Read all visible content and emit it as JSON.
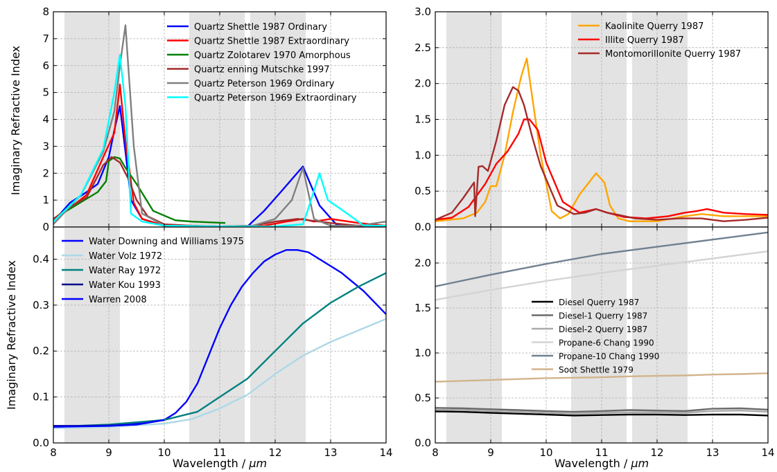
{
  "figure": {
    "ylabel_left": "Imaginary Refractive Index",
    "xlabel": "Wavelength / μm",
    "xlabel_text": "Wavelength / ",
    "xlabel_unit": "μm",
    "shaded_bands_um": [
      [
        8.2,
        9.2
      ],
      [
        10.45,
        11.45
      ],
      [
        11.55,
        12.55
      ]
    ]
  },
  "chart_data": [
    {
      "id": "tl",
      "type": "line",
      "xlim": [
        8,
        14
      ],
      "ylim": [
        0,
        8
      ],
      "xticks": [
        8,
        9,
        10,
        11,
        12,
        13,
        14
      ],
      "yticks": [
        0,
        1,
        2,
        3,
        4,
        5,
        6,
        7,
        8
      ],
      "ytick_labels": [
        "0",
        "1",
        "2",
        "3",
        "4",
        "5",
        "6",
        "7",
        "8"
      ],
      "show_xtick_labels": false,
      "grid": true,
      "legend": "top-right",
      "series": [
        {
          "name": "Quartz Shettle 1987 Ordinary",
          "color": "#0000ff",
          "x": [
            8,
            8.3,
            8.6,
            8.8,
            9.0,
            9.1,
            9.2,
            9.3,
            9.4,
            9.6,
            10,
            11,
            11.5,
            11.8,
            12.1,
            12.5,
            12.8,
            13.1,
            13.5,
            14
          ],
          "y": [
            0.2,
            0.9,
            1.3,
            1.6,
            2.6,
            3.6,
            4.5,
            2.8,
            1.0,
            0.3,
            0.05,
            0.02,
            0.02,
            0.6,
            1.3,
            2.25,
            0.8,
            0.1,
            0.05,
            0.05
          ]
        },
        {
          "name": "Quartz Shettle 1987 Extraordinary",
          "color": "#ff0000",
          "x": [
            8,
            8.3,
            8.6,
            8.9,
            9.1,
            9.2,
            9.3,
            9.45,
            9.6,
            10,
            11,
            11.5,
            11.8,
            12.2,
            12.5,
            12.7,
            13,
            13.5,
            14
          ],
          "y": [
            0.3,
            0.7,
            1.2,
            2.6,
            3.5,
            5.3,
            3.2,
            0.9,
            0.3,
            0.05,
            0.02,
            0.02,
            0.05,
            0.2,
            0.3,
            0.2,
            0.3,
            0.15,
            0.05
          ]
        },
        {
          "name": "Quartz Zolotarev 1970 Amorphous",
          "color": "#008000",
          "x": [
            8,
            8.4,
            8.8,
            8.95,
            9.0,
            9.1,
            9.2,
            9.3,
            9.5,
            9.8,
            10.2,
            10.5,
            11.1
          ],
          "y": [
            0.3,
            0.8,
            1.3,
            1.7,
            2.45,
            2.6,
            2.55,
            2.2,
            1.6,
            0.6,
            0.25,
            0.2,
            0.15
          ]
        },
        {
          "name": "Quartz enning Mutschke 1997",
          "color": "#a52a2a",
          "x": [
            8,
            8.3,
            8.6,
            8.9,
            9.05,
            9.2,
            9.35,
            9.5,
            9.7,
            10,
            10.5,
            11,
            11.6,
            12.0,
            12.4,
            12.8,
            13.0,
            13.5,
            14
          ],
          "y": [
            0.3,
            0.75,
            1.1,
            2.3,
            2.6,
            2.4,
            1.8,
            1.0,
            0.4,
            0.1,
            0.05,
            0.02,
            0.05,
            0.2,
            0.3,
            0.2,
            0.15,
            0.05,
            0.05
          ]
        },
        {
          "name": "Quartz Peterson 1969 Ordinary",
          "color": "#808080",
          "x": [
            8,
            8.5,
            8.9,
            9.1,
            9.2,
            9.3,
            9.45,
            9.6,
            10,
            11,
            11.6,
            12.0,
            12.3,
            12.5,
            12.7,
            13.0,
            13.5,
            14
          ],
          "y": [
            0.1,
            1.2,
            2.8,
            4.3,
            6.0,
            7.5,
            3.0,
            0.5,
            0.05,
            0.02,
            0.05,
            0.3,
            1.0,
            2.2,
            0.3,
            0.05,
            0.05,
            0.2
          ]
        },
        {
          "name": "Quartz Peterson 1969 Extraordinary",
          "color": "#00ffff",
          "x": [
            8,
            8.5,
            8.9,
            9.1,
            9.2,
            9.3,
            9.4,
            9.6,
            10,
            11,
            12,
            12.5,
            12.6,
            12.8,
            12.95,
            13.3,
            13.6,
            14
          ],
          "y": [
            0.2,
            1.2,
            2.9,
            5.0,
            6.4,
            4.5,
            0.5,
            0.2,
            0.05,
            0.02,
            0.02,
            0.1,
            0.7,
            2.0,
            1.0,
            0.5,
            0.05,
            0.05
          ]
        }
      ]
    },
    {
      "id": "tr",
      "type": "line",
      "xlim": [
        8,
        14
      ],
      "ylim": [
        0,
        3
      ],
      "xticks": [
        8,
        9,
        10,
        11,
        12,
        13,
        14
      ],
      "yticks": [
        0,
        0.5,
        1.0,
        1.5,
        2.0,
        2.5,
        3.0
      ],
      "ytick_labels": [
        "0.0",
        "0.5",
        "1.0",
        "1.5",
        "2.0",
        "2.5",
        "3.0"
      ],
      "show_xtick_labels": false,
      "grid": true,
      "legend": "top-right",
      "series": [
        {
          "name": "Kaolinite Querry 1987",
          "color": "#ffa500",
          "x": [
            8,
            8.5,
            8.75,
            8.9,
            9.0,
            9.1,
            9.25,
            9.4,
            9.55,
            9.65,
            9.75,
            9.9,
            10.1,
            10.25,
            10.4,
            10.6,
            10.9,
            11.05,
            11.15,
            11.3,
            11.5,
            12,
            12.5,
            12.8,
            13.2,
            13.6,
            14
          ],
          "y": [
            0.08,
            0.12,
            0.2,
            0.35,
            0.57,
            0.57,
            1.0,
            1.6,
            2.1,
            2.35,
            1.8,
            1.0,
            0.22,
            0.12,
            0.18,
            0.45,
            0.75,
            0.62,
            0.3,
            0.12,
            0.08,
            0.08,
            0.15,
            0.18,
            0.15,
            0.15,
            0.15
          ]
        },
        {
          "name": "Illite Querry 1987",
          "color": "#ff0000",
          "x": [
            8,
            8.3,
            8.6,
            8.9,
            9.1,
            9.3,
            9.5,
            9.6,
            9.7,
            9.85,
            10.0,
            10.3,
            10.6,
            10.9,
            11.1,
            11.4,
            11.8,
            12.2,
            12.5,
            12.7,
            12.9,
            13.2,
            13.6,
            14
          ],
          "y": [
            0.1,
            0.13,
            0.28,
            0.6,
            0.88,
            1.05,
            1.3,
            1.5,
            1.5,
            1.35,
            0.9,
            0.35,
            0.2,
            0.25,
            0.2,
            0.14,
            0.12,
            0.15,
            0.2,
            0.22,
            0.25,
            0.2,
            0.18,
            0.17
          ]
        },
        {
          "name": "Montomorillonite Querry 1987",
          "color": "#a52a2a",
          "x": [
            8,
            8.3,
            8.5,
            8.7,
            8.72,
            8.78,
            8.85,
            8.95,
            9.1,
            9.25,
            9.4,
            9.5,
            9.6,
            9.75,
            9.9,
            10.2,
            10.5,
            10.7,
            10.9,
            11.1,
            11.3,
            11.6,
            12,
            12.4,
            12.8,
            13.2,
            13.6,
            14
          ],
          "y": [
            0.1,
            0.2,
            0.4,
            0.62,
            0.15,
            0.84,
            0.85,
            0.78,
            1.2,
            1.7,
            1.95,
            1.9,
            1.7,
            1.25,
            0.85,
            0.3,
            0.18,
            0.2,
            0.25,
            0.2,
            0.17,
            0.12,
            0.1,
            0.12,
            0.12,
            0.08,
            0.1,
            0.13
          ]
        }
      ]
    },
    {
      "id": "bl",
      "type": "line",
      "xlim": [
        8,
        14
      ],
      "ylim": [
        0,
        0.47
      ],
      "xticks": [
        8,
        9,
        10,
        11,
        12,
        13,
        14
      ],
      "yticks": [
        0,
        0.1,
        0.2,
        0.3,
        0.4
      ],
      "ytick_labels": [
        "0.0",
        "0.1",
        "0.2",
        "0.3",
        "0.4"
      ],
      "show_xtick_labels": true,
      "grid": true,
      "legend": "top-left",
      "series": [
        {
          "name": "Water Downing and Williams 1975",
          "color": "#0000ff",
          "x": [
            8,
            9,
            10,
            10.2,
            10.4,
            10.6,
            10.8,
            11,
            11.2,
            11.4,
            11.6,
            11.8,
            12,
            12.2,
            12.4,
            12.6,
            12.8,
            13,
            13.2,
            13.4,
            13.6,
            13.8,
            14
          ],
          "y": [
            0.037,
            0.037,
            0.05,
            0.065,
            0.09,
            0.13,
            0.19,
            0.25,
            0.3,
            0.34,
            0.37,
            0.395,
            0.41,
            0.42,
            0.42,
            0.415,
            0.4,
            0.385,
            0.37,
            0.35,
            0.33,
            0.305,
            0.28
          ]
        },
        {
          "name": "Water Volz 1972",
          "color": "#add8e6",
          "x": [
            8,
            9,
            10,
            10.5,
            11,
            11.5,
            12,
            12.5,
            13,
            13.5,
            14
          ],
          "y": [
            0.032,
            0.035,
            0.042,
            0.052,
            0.075,
            0.105,
            0.15,
            0.19,
            0.22,
            0.245,
            0.27
          ]
        },
        {
          "name": "Water Ray 1972",
          "color": "#008080",
          "x": [
            8,
            9,
            10,
            10.6,
            11,
            11.5,
            12,
            12.5,
            13,
            13.5,
            14
          ],
          "y": [
            0.035,
            0.04,
            0.05,
            0.068,
            0.1,
            0.14,
            0.2,
            0.26,
            0.305,
            0.34,
            0.37
          ]
        },
        {
          "name": "Water Kou 1993",
          "color": "#00008b",
          "x": [
            8,
            8.5,
            9,
            9.5,
            10
          ],
          "y": [
            0.037,
            0.037,
            0.038,
            0.04,
            0.05
          ]
        },
        {
          "name": "Warren 2008",
          "color": "#0000ff",
          "x": [
            8,
            8.5,
            9,
            9.5,
            10
          ],
          "y": [
            0.035,
            0.036,
            0.037,
            0.04,
            0.05
          ]
        }
      ]
    },
    {
      "id": "br",
      "type": "line",
      "xlim": [
        8,
        14
      ],
      "ylim": [
        0,
        2.4
      ],
      "xticks": [
        8,
        9,
        10,
        11,
        12,
        13,
        14
      ],
      "yticks": [
        0,
        0.5,
        1.0,
        1.5,
        2.0
      ],
      "ytick_labels": [
        "0.0",
        "0.5",
        "1.0",
        "1.5",
        "2.0"
      ],
      "show_xtick_labels": true,
      "grid": true,
      "legend": "center-left",
      "series": [
        {
          "name": "Diesel Querry 1987",
          "color": "#000000",
          "x": [
            8,
            8.5,
            9,
            9.5,
            10,
            10.5,
            11,
            11.5,
            12,
            12.5,
            13,
            13.5,
            14
          ],
          "y": [
            0.35,
            0.345,
            0.335,
            0.325,
            0.315,
            0.305,
            0.31,
            0.315,
            0.315,
            0.31,
            0.315,
            0.315,
            0.305
          ]
        },
        {
          "name": "Diesel-1 Querry 1987",
          "color": "#696969",
          "x": [
            8,
            8.5,
            9,
            9.5,
            10,
            10.5,
            11,
            11.5,
            12,
            12.5,
            13,
            13.5,
            14
          ],
          "y": [
            0.39,
            0.385,
            0.375,
            0.365,
            0.355,
            0.345,
            0.355,
            0.365,
            0.36,
            0.355,
            0.38,
            0.385,
            0.37
          ]
        },
        {
          "name": "Diesel-2 Querry 1987",
          "color": "#a9a9a9",
          "x": [
            8,
            8.5,
            9,
            9.5,
            10,
            10.5,
            11,
            11.5,
            12,
            12.5,
            13,
            13.5,
            14
          ],
          "y": [
            0.37,
            0.365,
            0.355,
            0.345,
            0.335,
            0.325,
            0.335,
            0.34,
            0.34,
            0.335,
            0.355,
            0.36,
            0.345
          ]
        },
        {
          "name": "Propane-6 Chang 1990",
          "color": "#d3d3d3",
          "x": [
            8,
            9,
            10,
            11,
            12,
            13,
            14
          ],
          "y": [
            1.59,
            1.7,
            1.8,
            1.89,
            1.97,
            2.05,
            2.13
          ]
        },
        {
          "name": "Propane-10 Chang 1990",
          "color": "#708090",
          "x": [
            8,
            9,
            10,
            11,
            12,
            13,
            14
          ],
          "y": [
            1.74,
            1.87,
            1.99,
            2.1,
            2.18,
            2.26,
            2.34
          ]
        },
        {
          "name": "Soot Shettle 1979",
          "color": "#d2b48c",
          "x": [
            8,
            8.5,
            9,
            9.5,
            10,
            10.5,
            11,
            11.5,
            12,
            12.5,
            13,
            13.5,
            14
          ],
          "y": [
            0.68,
            0.69,
            0.7,
            0.71,
            0.72,
            0.725,
            0.73,
            0.74,
            0.745,
            0.75,
            0.76,
            0.765,
            0.775
          ]
        }
      ]
    }
  ]
}
